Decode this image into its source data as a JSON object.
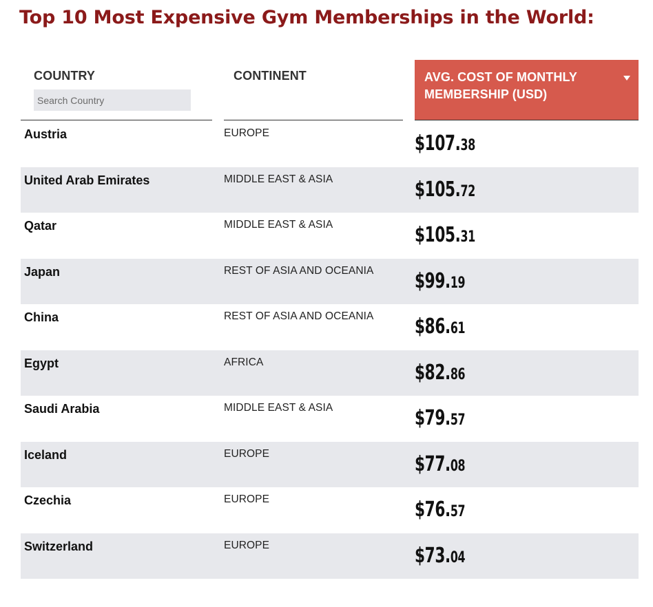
{
  "page": {
    "title": "Top 10 Most Expensive Gym Memberships in the World:"
  },
  "table": {
    "headers": {
      "country": "COUNTRY",
      "continent": "CONTINENT",
      "cost": "AVG. COST OF MONTHLY MEMBERSHIP (USD)"
    },
    "search": {
      "placeholder": "Search Country",
      "value": ""
    },
    "sort_icon": "caret-down-icon",
    "rows": [
      {
        "country": "Austria",
        "continent": "EUROPE",
        "cost_main": "$107.",
        "cost_cents": "38"
      },
      {
        "country": "United Arab Emirates",
        "continent": "MIDDLE EAST & ASIA",
        "cost_main": "$105.",
        "cost_cents": "72"
      },
      {
        "country": "Qatar",
        "continent": "MIDDLE EAST & ASIA",
        "cost_main": "$105.",
        "cost_cents": "31"
      },
      {
        "country": "Japan",
        "continent": "REST OF ASIA AND OCEANIA",
        "cost_main": "$99.",
        "cost_cents": "19"
      },
      {
        "country": "China",
        "continent": "REST OF ASIA AND OCEANIA",
        "cost_main": "$86.",
        "cost_cents": "61"
      },
      {
        "country": "Egypt",
        "continent": "AFRICA",
        "cost_main": "$82.",
        "cost_cents": "86"
      },
      {
        "country": "Saudi Arabia",
        "continent": "MIDDLE EAST & ASIA",
        "cost_main": "$79.",
        "cost_cents": "57"
      },
      {
        "country": "Iceland",
        "continent": "EUROPE",
        "cost_main": "$77.",
        "cost_cents": "08"
      },
      {
        "country": "Czechia",
        "continent": "EUROPE",
        "cost_main": "$76.",
        "cost_cents": "57"
      },
      {
        "country": "Switzerland",
        "continent": "EUROPE",
        "cost_main": "$73.",
        "cost_cents": "04"
      }
    ]
  },
  "colors": {
    "title": "#8b1a1a",
    "accent_header": "#d65a4d",
    "row_alt": "#e7e8ec"
  }
}
